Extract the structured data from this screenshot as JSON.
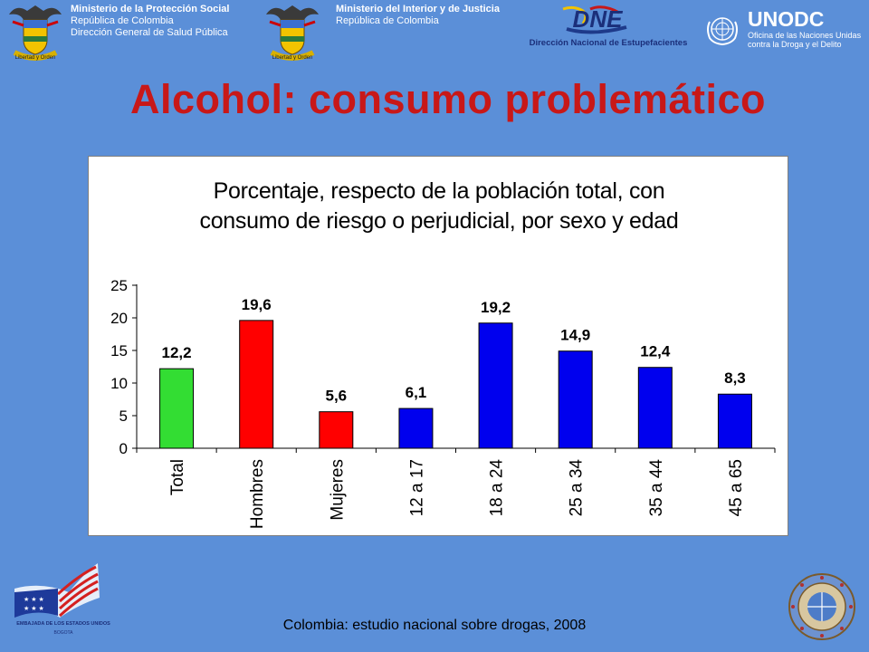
{
  "header": {
    "ministry1": {
      "name": "Ministerio de la Protección Social",
      "line2": "República de Colombia",
      "line3": "Dirección General de Salud Pública"
    },
    "ministry2": {
      "name": "Ministerio del Interior y de Justicia",
      "line2": "República de Colombia"
    },
    "dne": {
      "logo_text": "DNE",
      "caption": "Dirección Nacional de Estupefacientes"
    },
    "unodc": {
      "logo_text": "UNODC",
      "line1": "Oficina de las Naciones Unidas",
      "line2": "contra la Droga y el Delito"
    },
    "coat_motto": "Libertad y Orden"
  },
  "slide": {
    "title": "Alcohol: consumo problemático"
  },
  "chart_data": {
    "type": "bar",
    "title": "Porcentaje, respecto de la población total, con consumo de riesgo o perjudicial, por sexo y edad",
    "title_lines": [
      "Porcentaje, respecto de la población total, con",
      "consumo de riesgo o perjudicial, por sexo y edad"
    ],
    "xlabel": "",
    "ylabel": "",
    "ylim": [
      0,
      25
    ],
    "yticks": [
      0,
      5,
      10,
      15,
      20,
      25
    ],
    "categories": [
      "Total",
      "Hombres",
      "Mujeres",
      "12 a 17",
      "18 a 24",
      "25 a 34",
      "35 a 44",
      "45 a 65"
    ],
    "values": [
      12.2,
      19.6,
      5.6,
      6.1,
      19.2,
      14.9,
      12.4,
      8.3
    ],
    "value_labels": [
      "12,2",
      "19,6",
      "5,6",
      "6,1",
      "19,2",
      "14,9",
      "12,4",
      "8,3"
    ],
    "bar_colors": [
      "#33dd33",
      "#ff0000",
      "#ff0000",
      "#0000ee",
      "#0000ee",
      "#0000ee",
      "#0000ee",
      "#0000ee"
    ],
    "grid": false,
    "legend": "none"
  },
  "footer": {
    "source": "Colombia: estudio nacional sobre drogas, 2008",
    "embassy_text": "EMBAJADA DE LOS ESTADOS UNIDOS",
    "embassy_sub": "BOGOTA"
  },
  "colors": {
    "background": "#5b8fd8",
    "title": "#c81818"
  }
}
